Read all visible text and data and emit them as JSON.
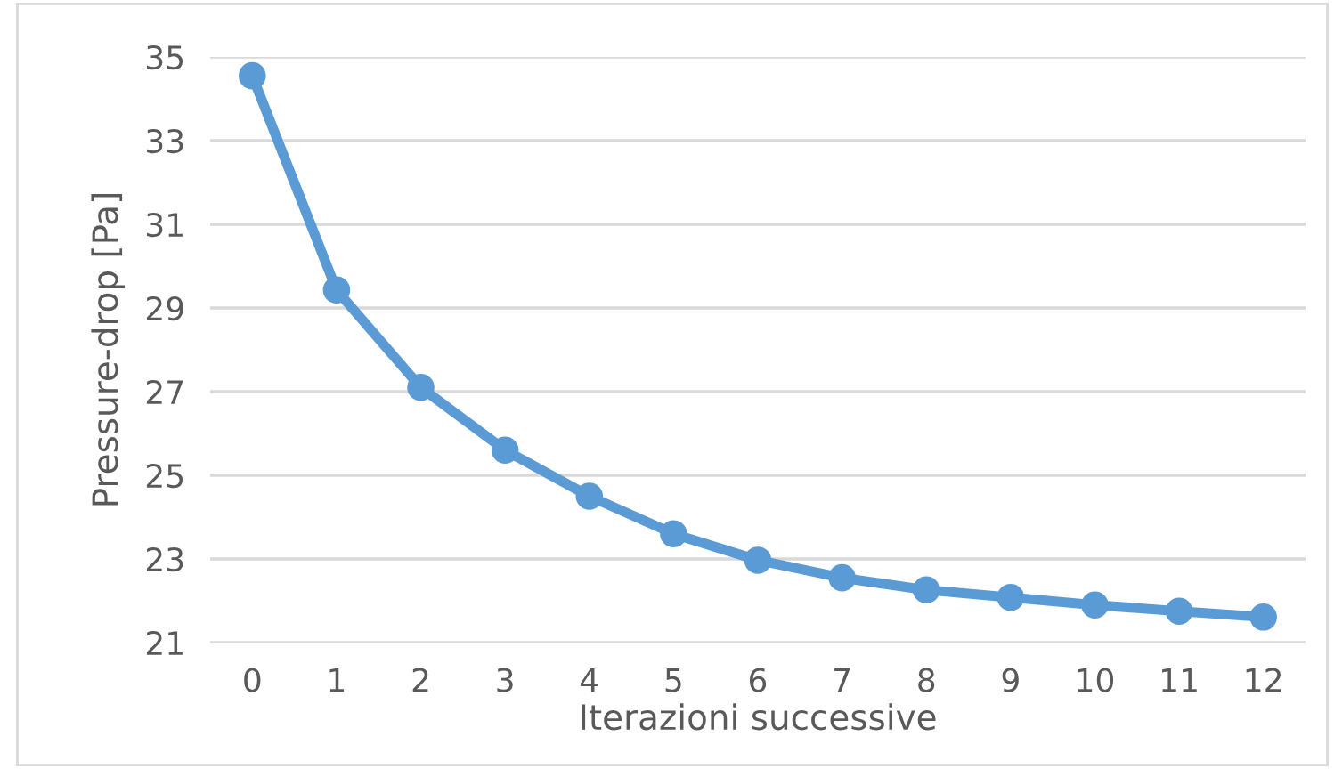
{
  "chart_data": {
    "type": "line",
    "xlabel": "Iterazioni successive",
    "ylabel": "Pressure-drop [Pa]",
    "categories": [
      "0",
      "1",
      "2",
      "3",
      "4",
      "5",
      "6",
      "7",
      "8",
      "9",
      "10",
      "11",
      "12"
    ],
    "series": [
      {
        "color": "#5b9bd5",
        "values": [
          34.55,
          29.43,
          27.1,
          25.6,
          24.5,
          23.6,
          22.97,
          22.55,
          22.26,
          22.08,
          21.9,
          21.75,
          21.61
        ]
      }
    ],
    "ylim": [
      21,
      35
    ],
    "yticks": [
      21,
      23,
      25,
      27,
      29,
      31,
      33,
      35
    ],
    "grid": "y",
    "marker": "circle",
    "line_style": "solid",
    "legend": false
  }
}
